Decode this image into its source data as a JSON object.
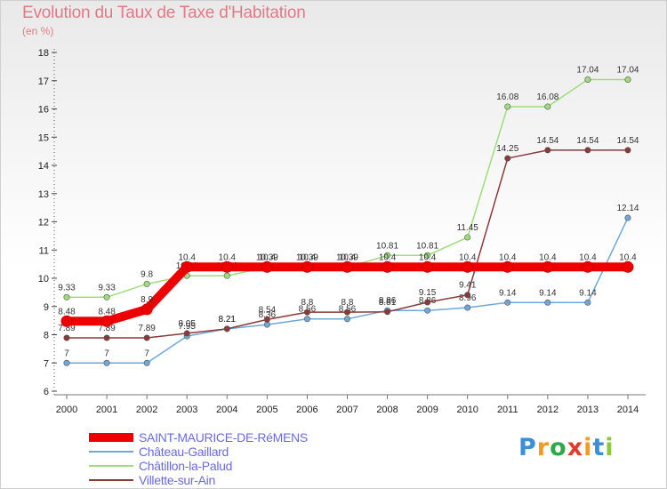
{
  "title": "Evolution du Taux de Taxe d'Habitation",
  "subtitle": "(en %)",
  "logo": {
    "letters": [
      "P",
      "r",
      "o",
      "x",
      "i",
      "t",
      "i"
    ],
    "colors": [
      "#3a8fd6",
      "#f39c1f",
      "#2ea84a",
      "#e23b2e",
      "#f39c1f",
      "#3a8fd6",
      "#8dc63f"
    ]
  },
  "chart_data": {
    "type": "line",
    "title": "Evolution du Taux de Taxe d'Habitation",
    "ylabel": "(en %)",
    "x": [
      "2000",
      "2001",
      "2002",
      "2003",
      "2004",
      "2005",
      "2006",
      "2007",
      "2008",
      "2009",
      "2010",
      "2011",
      "2012",
      "2013",
      "2014"
    ],
    "ylim": [
      6,
      18
    ],
    "yticks": [
      "6",
      "7",
      "8",
      "9",
      "10",
      "11",
      "12",
      "13",
      "14",
      "15",
      "16",
      "17",
      "18"
    ],
    "grid": false,
    "legend_position": "bottom-left",
    "series": [
      {
        "name": "Château-Gaillard",
        "color": "#6fa8d8",
        "values": [
          7,
          7,
          7,
          7.95,
          8.21,
          8.36,
          8.56,
          8.56,
          8.86,
          8.86,
          8.96,
          9.14,
          9.14,
          9.14,
          12.14
        ],
        "labels": [
          "7",
          "7",
          "7",
          "7.95",
          "8.21",
          "8.36",
          "8.56",
          "8.56",
          "8.86",
          "8.86",
          "8.96",
          "9.14",
          "9.14",
          "9.14",
          "12.14"
        ]
      },
      {
        "name": "Châtillon-la-Palud",
        "color": "#9ddd7b",
        "values": [
          9.33,
          9.33,
          9.8,
          10.09,
          10.09,
          10.39,
          10.39,
          10.39,
          10.81,
          10.81,
          11.45,
          16.08,
          16.08,
          17.04,
          17.04
        ],
        "labels": [
          "9.33",
          "9.33",
          "9.8",
          "10.09",
          "10.09",
          "10.39",
          "10.39",
          "10.39",
          "10.81",
          "10.81",
          "11.45",
          "16.08",
          "16.08",
          "17.04",
          "17.04"
        ]
      },
      {
        "name": "Villette-sur-Ain",
        "color": "#8b3a3a",
        "values": [
          7.89,
          7.89,
          7.89,
          8.05,
          8.21,
          8.54,
          8.8,
          8.8,
          8.81,
          9.15,
          9.41,
          14.25,
          14.54,
          14.54,
          14.54
        ],
        "labels": [
          "7.89",
          "7.89",
          "7.89",
          "8.05",
          "8.21",
          "8.54",
          "8.8",
          "8.8",
          "8.81",
          "9.15",
          "9.41",
          "14.25",
          "14.54",
          "14.54",
          "14.54"
        ]
      },
      {
        "name": "SAINT-MAURICE-DE-RéMENS",
        "color": "#ee0000",
        "values": [
          8.48,
          8.48,
          8.9,
          10.4,
          10.4,
          10.4,
          10.4,
          10.4,
          10.4,
          10.4,
          10.4,
          10.4,
          10.4,
          10.4,
          10.4
        ],
        "labels": [
          "8.48",
          "8.48",
          "8.9",
          "10.4",
          "10.4",
          "10.4",
          "10.4",
          "10.4",
          "10.4",
          "10.4",
          "10.4",
          "10.4",
          "10.4",
          "10.4",
          "10.4"
        ]
      }
    ],
    "legend": [
      {
        "name": "SAINT-MAURICE-DE-RéMENS",
        "color": "#ee0000"
      },
      {
        "name": "Château-Gaillard",
        "color": "#6fa8d8"
      },
      {
        "name": "Châtillon-la-Palud",
        "color": "#9ddd7b"
      },
      {
        "name": "Villette-sur-Ain",
        "color": "#8b3a3a"
      }
    ]
  }
}
